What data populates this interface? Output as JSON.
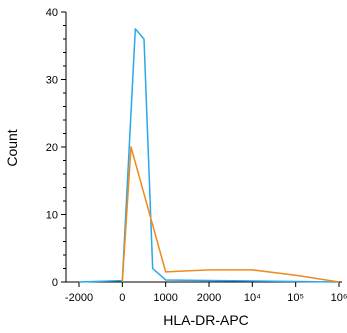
{
  "chart_data": {
    "type": "line",
    "xlabel": "HLA-DR-APC",
    "ylabel": "Count",
    "ylim": [
      0,
      40
    ],
    "y_ticks": [
      "0",
      "10",
      "20",
      "30",
      "40"
    ],
    "x_ticks": [
      "-2000",
      "0",
      "1000",
      "2000",
      "10⁴",
      "10⁵",
      "10⁶"
    ],
    "grid": false,
    "series": [
      {
        "color": "#2aa7e8",
        "points": [
          {
            "x": "-2000",
            "y": 0
          },
          {
            "x": "0",
            "y": 0.2
          },
          {
            "x": "300",
            "y": 37.5
          },
          {
            "x": "500",
            "y": 36
          },
          {
            "x": "700",
            "y": 2
          },
          {
            "x": "1000",
            "y": 0.3
          },
          {
            "x": "10⁶",
            "y": 0
          }
        ]
      },
      {
        "color": "#f08a1c",
        "points": [
          {
            "x": "0",
            "y": 0
          },
          {
            "x": "200",
            "y": 20
          },
          {
            "x": "1000",
            "y": 1.5
          },
          {
            "x": "2000",
            "y": 1.8
          },
          {
            "x": "10⁴",
            "y": 1.8
          },
          {
            "x": "10⁵",
            "y": 1.0
          },
          {
            "x": "10⁶",
            "y": 0
          }
        ]
      }
    ]
  }
}
